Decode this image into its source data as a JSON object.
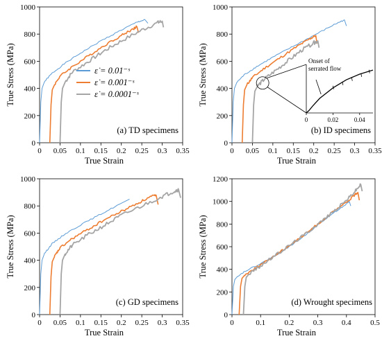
{
  "figure": {
    "colors": {
      "fast": "#5B9BD5",
      "mid": "#ED7D31",
      "slow": "#A5A5A5",
      "inset_line": "#000000"
    },
    "legend": [
      {
        "key": "fast",
        "label": "ε̇ = 0.01⁻ˢ"
      },
      {
        "key": "mid",
        "label": "ε̇ = 0.001⁻ˢ"
      },
      {
        "key": "slow",
        "label": "ε̇ = 0.0001⁻ˢ"
      }
    ]
  },
  "chart_data": [
    {
      "type": "line",
      "panel": "a",
      "caption": "(a) TD specimens",
      "xlabel": "True Strain",
      "ylabel": "True Stress (MPa)",
      "xlim": [
        0,
        0.35
      ],
      "ylim": [
        0,
        1000
      ],
      "xticks": [
        "0",
        "0.05",
        "0.1",
        "0.15",
        "0.2",
        "0.25",
        "0.3",
        "0.35"
      ],
      "yticks": [
        "0",
        "200",
        "400",
        "600",
        "800",
        "1000"
      ],
      "series": [
        {
          "key": "fast",
          "x": [
            0,
            0.003,
            0.006,
            0.012,
            0.03,
            0.06,
            0.1,
            0.15,
            0.2,
            0.24,
            0.258,
            0.265
          ],
          "y": [
            0,
            300,
            400,
            450,
            510,
            580,
            660,
            750,
            830,
            890,
            905,
            880
          ]
        },
        {
          "key": "mid",
          "x": [
            0.025,
            0.028,
            0.031,
            0.037,
            0.05,
            0.08,
            0.12,
            0.16,
            0.2,
            0.23,
            0.238,
            0.242
          ],
          "y": [
            0,
            280,
            390,
            430,
            490,
            560,
            640,
            720,
            790,
            840,
            855,
            810
          ]
        },
        {
          "key": "slow",
          "x": [
            0.05,
            0.053,
            0.056,
            0.063,
            0.08,
            0.12,
            0.16,
            0.2,
            0.25,
            0.29,
            0.3,
            0.303
          ],
          "y": [
            0,
            300,
            400,
            450,
            520,
            600,
            680,
            750,
            830,
            885,
            895,
            850
          ]
        }
      ]
    },
    {
      "type": "line",
      "panel": "b",
      "caption": "(b) ID specimens",
      "xlabel": "True Strain",
      "ylabel": "True Stress (MPa)",
      "xlim": [
        0,
        0.35
      ],
      "ylim": [
        0,
        1000
      ],
      "xticks": [
        "0",
        "0.05",
        "0.1",
        "0.15",
        "0.2",
        "0.25",
        "0.3",
        "0.35"
      ],
      "yticks": [
        "0",
        "200",
        "400",
        "600",
        "800",
        "1000"
      ],
      "series": [
        {
          "key": "fast",
          "x": [
            0,
            0.003,
            0.006,
            0.012,
            0.03,
            0.06,
            0.1,
            0.15,
            0.2,
            0.25,
            0.275,
            0.28
          ],
          "y": [
            0,
            300,
            400,
            445,
            500,
            560,
            630,
            710,
            790,
            870,
            905,
            860
          ]
        },
        {
          "key": "mid",
          "x": [
            0.025,
            0.028,
            0.031,
            0.037,
            0.05,
            0.08,
            0.12,
            0.16,
            0.19,
            0.205,
            0.208
          ],
          "y": [
            0,
            280,
            390,
            430,
            480,
            550,
            630,
            710,
            765,
            790,
            730
          ]
        },
        {
          "key": "slow",
          "x": [
            0.05,
            0.053,
            0.056,
            0.063,
            0.08,
            0.11,
            0.14,
            0.17,
            0.2,
            0.21,
            0.213
          ],
          "y": [
            0,
            280,
            380,
            420,
            470,
            540,
            610,
            680,
            735,
            750,
            700
          ]
        }
      ],
      "inset": {
        "title": "Onset of\nserrated flow",
        "xticks": [
          "0",
          "0.02",
          "0.04"
        ],
        "x": [
          0,
          0.002,
          0.005,
          0.01,
          0.02,
          0.03,
          0.04,
          0.05
        ],
        "y": [
          0,
          30,
          90,
          180,
          310,
          410,
          480,
          530
        ]
      }
    },
    {
      "type": "line",
      "panel": "c",
      "caption": "(c) GD specimens",
      "xlabel": "True Strain",
      "ylabel": "True Stress (MPa)",
      "xlim": [
        0,
        0.35
      ],
      "ylim": [
        0,
        1000
      ],
      "xticks": [
        "0",
        "0.05",
        "0.1",
        "0.15",
        "0.2",
        "0.25",
        "0.3",
        "0.35"
      ],
      "yticks": [
        "0",
        "200",
        "400",
        "600",
        "800",
        "1000"
      ],
      "series": [
        {
          "key": "fast",
          "x": [
            0,
            0.003,
            0.006,
            0.012,
            0.03,
            0.06,
            0.1,
            0.15,
            0.2,
            0.22
          ],
          "y": [
            0,
            300,
            400,
            450,
            520,
            590,
            660,
            740,
            820,
            850
          ]
        },
        {
          "key": "mid",
          "x": [
            0.025,
            0.028,
            0.031,
            0.037,
            0.05,
            0.08,
            0.12,
            0.16,
            0.2,
            0.24,
            0.27,
            0.285,
            0.29
          ],
          "y": [
            0,
            280,
            390,
            430,
            490,
            560,
            630,
            700,
            760,
            820,
            865,
            880,
            810
          ]
        },
        {
          "key": "slow",
          "x": [
            0.05,
            0.053,
            0.056,
            0.063,
            0.08,
            0.12,
            0.16,
            0.2,
            0.25,
            0.3,
            0.33,
            0.34,
            0.345
          ],
          "y": [
            0,
            300,
            400,
            450,
            510,
            590,
            660,
            730,
            800,
            870,
            910,
            920,
            860
          ]
        }
      ]
    },
    {
      "type": "line",
      "panel": "d",
      "caption": "(d) Wrought specimens",
      "xlabel": "True Strain",
      "ylabel": "True Stress (MPa)",
      "xlim": [
        0,
        0.5
      ],
      "ylim": [
        0,
        1200
      ],
      "xticks": [
        "0",
        "0.1",
        "0.2",
        "0.3",
        "0.4",
        "0.5"
      ],
      "yticks": [
        "0",
        "200",
        "400",
        "600",
        "800",
        "1000",
        "1200"
      ],
      "series": [
        {
          "key": "fast",
          "x": [
            0,
            0.005,
            0.01,
            0.02,
            0.05,
            0.1,
            0.15,
            0.2,
            0.25,
            0.3,
            0.35,
            0.4,
            0.41,
            0.415
          ],
          "y": [
            0,
            250,
            310,
            340,
            390,
            450,
            520,
            600,
            690,
            790,
            890,
            975,
            1000,
            960
          ]
        },
        {
          "key": "mid",
          "x": [
            0.025,
            0.03,
            0.035,
            0.045,
            0.08,
            0.12,
            0.16,
            0.2,
            0.25,
            0.3,
            0.35,
            0.4,
            0.43,
            0.44,
            0.445
          ],
          "y": [
            0,
            250,
            320,
            350,
            410,
            470,
            540,
            610,
            700,
            800,
            900,
            990,
            1060,
            1080,
            1010
          ]
        },
        {
          "key": "slow",
          "x": [
            0.04,
            0.045,
            0.05,
            0.06,
            0.1,
            0.15,
            0.2,
            0.25,
            0.3,
            0.35,
            0.4,
            0.43,
            0.45,
            0.455
          ],
          "y": [
            0,
            250,
            330,
            360,
            430,
            520,
            610,
            700,
            800,
            900,
            1010,
            1090,
            1150,
            1090
          ]
        }
      ]
    }
  ]
}
